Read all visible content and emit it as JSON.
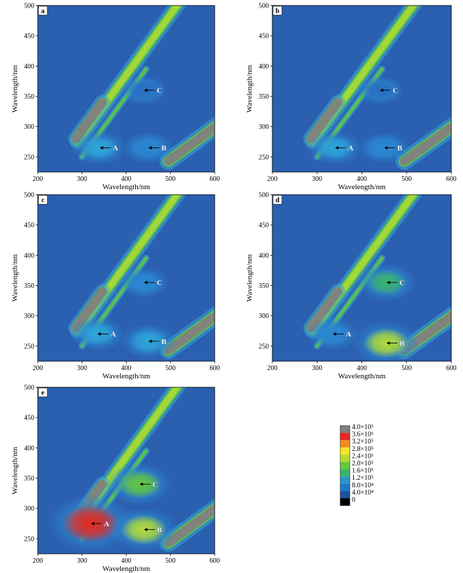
{
  "chart_data": [
    {
      "type": "heatmap",
      "panel": "a",
      "xlabel": "Wavelength/nm",
      "ylabel": "Wavelength/nm",
      "xlim": [
        200,
        600
      ],
      "ylim": [
        225,
        500
      ],
      "xticks": [
        "200",
        "300",
        "400",
        "500",
        "600"
      ],
      "yticks": [
        "250",
        "300",
        "350",
        "400",
        "450",
        "500"
      ],
      "peaks": [
        {
          "label": "A",
          "ex": 265,
          "em": 340,
          "intensity": 110000
        },
        {
          "label": "B",
          "ex": 265,
          "em": 450,
          "intensity": 80000
        },
        {
          "label": "C",
          "ex": 360,
          "em": 440,
          "intensity": 50000
        }
      ]
    },
    {
      "type": "heatmap",
      "panel": "b",
      "xlabel": "Wavelength/nm",
      "ylabel": "Wavelength/nm",
      "xlim": [
        200,
        600
      ],
      "ylim": [
        225,
        500
      ],
      "xticks": [
        "200",
        "300",
        "400",
        "500",
        "600"
      ],
      "yticks": [
        "250",
        "300",
        "350",
        "400",
        "450",
        "500"
      ],
      "peaks": [
        {
          "label": "A",
          "ex": 265,
          "em": 340,
          "intensity": 110000
        },
        {
          "label": "B",
          "ex": 265,
          "em": 450,
          "intensity": 80000
        },
        {
          "label": "C",
          "ex": 360,
          "em": 440,
          "intensity": 50000
        }
      ]
    },
    {
      "type": "heatmap",
      "panel": "c",
      "xlabel": "Wavelength/nm",
      "ylabel": "Wavelength/nm",
      "xlim": [
        200,
        600
      ],
      "ylim": [
        225,
        500
      ],
      "xticks": [
        "200",
        "300",
        "400",
        "500",
        "600"
      ],
      "yticks": [
        "250",
        "300",
        "350",
        "400",
        "450",
        "500"
      ],
      "peaks": [
        {
          "label": "A",
          "ex": 270,
          "em": 335,
          "intensity": 110000
        },
        {
          "label": "B",
          "ex": 258,
          "em": 450,
          "intensity": 120000
        },
        {
          "label": "C",
          "ex": 355,
          "em": 440,
          "intensity": 70000
        }
      ]
    },
    {
      "type": "heatmap",
      "panel": "d",
      "xlabel": "Wavelength/nm",
      "ylabel": "Wavelength/nm",
      "xlim": [
        200,
        600
      ],
      "ylim": [
        225,
        500
      ],
      "xticks": [
        "200",
        "300",
        "400",
        "500",
        "600"
      ],
      "yticks": [
        "250",
        "300",
        "350",
        "400",
        "450",
        "500"
      ],
      "peaks": [
        {
          "label": "A",
          "ex": 270,
          "em": 335,
          "intensity": 90000
        },
        {
          "label": "B",
          "ex": 255,
          "em": 455,
          "intensity": 220000
        },
        {
          "label": "C",
          "ex": 355,
          "em": 455,
          "intensity": 150000
        }
      ]
    },
    {
      "type": "heatmap",
      "panel": "e",
      "xlabel": "Wavelength/nm",
      "ylabel": "Wavelength/nm",
      "xlim": [
        200,
        600
      ],
      "ylim": [
        225,
        500
      ],
      "xticks": [
        "200",
        "300",
        "400",
        "500",
        "600"
      ],
      "yticks": [
        "250",
        "300",
        "350",
        "400",
        "450",
        "500"
      ],
      "peaks": [
        {
          "label": "A",
          "ex": 275,
          "em": 320,
          "intensity": 360000
        },
        {
          "label": "B",
          "ex": 265,
          "em": 440,
          "intensity": 220000
        },
        {
          "label": "C",
          "ex": 340,
          "em": 430,
          "intensity": 200000
        }
      ]
    }
  ],
  "colorbar": {
    "labels": [
      "4.0×10⁵",
      "3.6×10⁵",
      "3.2×10⁵",
      "2.8×10⁵",
      "2.4×10⁵",
      "2.0×10⁵",
      "1.6×10⁵",
      "1.2×10⁵",
      "8.0×10⁴",
      "4.0×10⁴",
      "0"
    ],
    "colors": [
      "#808080",
      "#e8281e",
      "#f08c1e",
      "#f5e628",
      "#b4dc32",
      "#64c83c",
      "#3cb46e",
      "#2896c8",
      "#1e78c8",
      "#1e50a0",
      "#000000"
    ]
  },
  "background_color": "#2b5fb0",
  "saturated_color": "#808080"
}
